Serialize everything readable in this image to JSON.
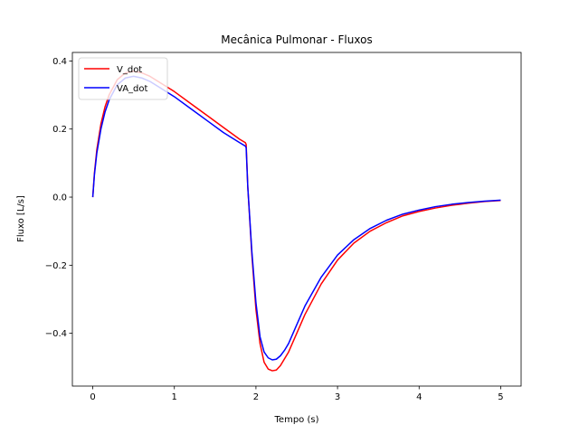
{
  "chart_data": {
    "type": "line",
    "title": "Mecânica Pulmonar - Fluxos",
    "xlabel": "Tempo (s)",
    "ylabel": "Fluxo [L/s]",
    "xlim": [
      -0.25,
      5.25
    ],
    "ylim": [
      -0.555,
      0.425
    ],
    "xticks": [
      0,
      1,
      2,
      3,
      4,
      5
    ],
    "xtick_labels": [
      "0",
      "1",
      "2",
      "3",
      "4",
      "5"
    ],
    "yticks": [
      -0.4,
      -0.2,
      0.0,
      0.2,
      0.4
    ],
    "ytick_labels": [
      "−0.4",
      "−0.2",
      "0.0",
      "0.2",
      "0.4"
    ],
    "grid": false,
    "legend_position": "top-left",
    "series": [
      {
        "name": "V_dot",
        "color": "#ff0000",
        "x": [
          0,
          0.02,
          0.05,
          0.1,
          0.15,
          0.2,
          0.3,
          0.4,
          0.5,
          0.6,
          0.7,
          0.8,
          1.0,
          1.2,
          1.4,
          1.6,
          1.8,
          1.87,
          1.88,
          1.9,
          1.95,
          2.0,
          2.05,
          2.1,
          2.15,
          2.2,
          2.25,
          2.3,
          2.35,
          2.4,
          2.5,
          2.6,
          2.8,
          3.0,
          3.2,
          3.4,
          3.6,
          3.8,
          4.0,
          4.2,
          4.4,
          4.6,
          4.8,
          5.0
        ],
        "y": [
          0.0,
          0.07,
          0.14,
          0.215,
          0.265,
          0.3,
          0.345,
          0.365,
          0.37,
          0.365,
          0.355,
          0.34,
          0.31,
          0.275,
          0.24,
          0.205,
          0.17,
          0.16,
          0.155,
          0.03,
          -0.17,
          -0.33,
          -0.43,
          -0.485,
          -0.505,
          -0.51,
          -0.508,
          -0.495,
          -0.475,
          -0.455,
          -0.4,
          -0.345,
          -0.255,
          -0.185,
          -0.135,
          -0.1,
          -0.075,
          -0.055,
          -0.042,
          -0.032,
          -0.024,
          -0.018,
          -0.013,
          -0.01
        ]
      },
      {
        "name": "VA_dot",
        "color": "#0000ff",
        "x": [
          0,
          0.02,
          0.05,
          0.1,
          0.15,
          0.2,
          0.3,
          0.4,
          0.5,
          0.6,
          0.7,
          0.8,
          1.0,
          1.2,
          1.4,
          1.6,
          1.8,
          1.87,
          1.88,
          1.9,
          1.95,
          2.0,
          2.05,
          2.1,
          2.15,
          2.2,
          2.25,
          2.3,
          2.35,
          2.4,
          2.5,
          2.6,
          2.8,
          3.0,
          3.2,
          3.4,
          3.6,
          3.8,
          4.0,
          4.2,
          4.4,
          4.6,
          4.8,
          5.0
        ],
        "y": [
          0.0,
          0.065,
          0.13,
          0.2,
          0.25,
          0.285,
          0.33,
          0.35,
          0.355,
          0.35,
          0.34,
          0.325,
          0.295,
          0.26,
          0.225,
          0.19,
          0.16,
          0.15,
          0.145,
          0.03,
          -0.16,
          -0.31,
          -0.41,
          -0.455,
          -0.472,
          -0.478,
          -0.476,
          -0.466,
          -0.45,
          -0.43,
          -0.375,
          -0.32,
          -0.235,
          -0.17,
          -0.125,
          -0.092,
          -0.068,
          -0.05,
          -0.038,
          -0.028,
          -0.021,
          -0.016,
          -0.012,
          -0.009
        ]
      }
    ]
  }
}
